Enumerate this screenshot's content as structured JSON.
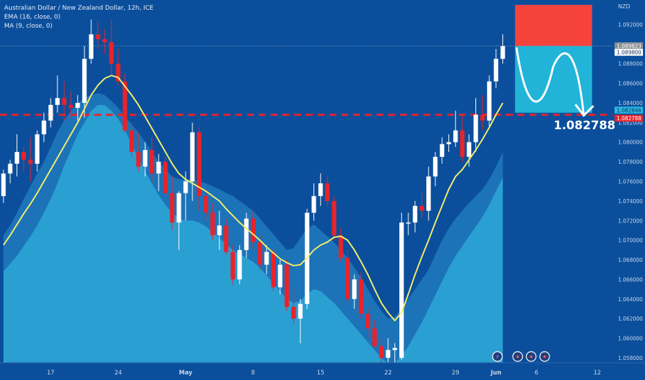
{
  "header": {
    "title": "Australian Dollar / New Zealand Dollar, 12h, ICE",
    "indicator_ema": "EMA (16, close, 0)",
    "indicator_ma": "MA (9, close, 0)"
  },
  "colors": {
    "background": "#0b4f9c",
    "area_outer": "#1d73b8",
    "area_inner": "#2a9fd2",
    "bull": "#ffffff",
    "bear": "#e8232b",
    "ema": "#f4ee6a",
    "target_zone": "#22b4d8",
    "stop_zone": "#f5433c",
    "support_line": "#e8232b"
  },
  "chart_data": {
    "type": "candlestick",
    "currency": "NZD",
    "ylim": [
      1.0575,
      1.0945
    ],
    "price_ticks": [
      "1.092000",
      "1.090000",
      "1.088000",
      "1.086000",
      "1.084000",
      "1.082000",
      "1.080000",
      "1.078000",
      "1.076000",
      "1.074000",
      "1.072000",
      "1.070000",
      "1.068000",
      "1.066000",
      "1.064000",
      "1.062000",
      "1.060000",
      "1.058000"
    ],
    "x_ticks": [
      {
        "label": "17",
        "index": 7
      },
      {
        "label": "24",
        "index": 17
      },
      {
        "label": "May",
        "index": 27
      },
      {
        "label": "8",
        "index": 37
      },
      {
        "label": "15",
        "index": 47
      },
      {
        "label": "22",
        "index": 57
      },
      {
        "label": "29",
        "index": 67
      },
      {
        "label": "Jun",
        "index": 73
      },
      {
        "label": "6",
        "index": 79
      },
      {
        "label": "12",
        "index": 88
      }
    ],
    "candles": [
      [
        1.0745,
        1.0772,
        1.0738,
        1.0768
      ],
      [
        1.0768,
        1.0782,
        1.0758,
        1.0778
      ],
      [
        1.0778,
        1.0808,
        1.0765,
        1.079
      ],
      [
        1.079,
        1.0795,
        1.077,
        1.0782
      ],
      [
        1.0782,
        1.0805,
        1.076,
        1.0778
      ],
      [
        1.0778,
        1.0812,
        1.077,
        1.0808
      ],
      [
        1.0808,
        1.083,
        1.08,
        1.0822
      ],
      [
        1.0822,
        1.0845,
        1.0815,
        1.0838
      ],
      [
        1.0838,
        1.0868,
        1.083,
        1.0845
      ],
      [
        1.0845,
        1.0862,
        1.0822,
        1.0838
      ],
      [
        1.0838,
        1.0852,
        1.0825,
        1.0835
      ],
      [
        1.0835,
        1.0848,
        1.0822,
        1.084
      ],
      [
        1.084,
        1.0898,
        1.0825,
        1.0885
      ],
      [
        1.0885,
        1.0925,
        1.088,
        1.091
      ],
      [
        1.091,
        1.0922,
        1.0895,
        1.0905
      ],
      [
        1.0905,
        1.0915,
        1.089,
        1.0902
      ],
      [
        1.0902,
        1.0925,
        1.087,
        1.088
      ],
      [
        1.088,
        1.0895,
        1.0858,
        1.0862
      ],
      [
        1.0862,
        1.087,
        1.081,
        1.0812
      ],
      [
        1.0812,
        1.082,
        1.0785,
        1.079
      ],
      [
        1.079,
        1.081,
        1.077,
        1.0775
      ],
      [
        1.0775,
        1.08,
        1.0765,
        1.0792
      ],
      [
        1.0792,
        1.0805,
        1.076,
        1.0768
      ],
      [
        1.0768,
        1.0788,
        1.075,
        1.078
      ],
      [
        1.078,
        1.0785,
        1.0745,
        1.0748
      ],
      [
        1.0748,
        1.0765,
        1.071,
        1.0718
      ],
      [
        1.0718,
        1.075,
        1.069,
        1.0748
      ],
      [
        1.0748,
        1.077,
        1.072,
        1.076
      ],
      [
        1.076,
        1.082,
        1.074,
        1.081
      ],
      [
        1.081,
        1.0815,
        1.073,
        1.0745
      ],
      [
        1.0745,
        1.0752,
        1.072,
        1.0728
      ],
      [
        1.0728,
        1.0738,
        1.07,
        1.0705
      ],
      [
        1.0705,
        1.073,
        1.069,
        1.0715
      ],
      [
        1.0715,
        1.0722,
        1.0685,
        1.0688
      ],
      [
        1.0688,
        1.0695,
        1.0655,
        1.066
      ],
      [
        1.066,
        1.0695,
        1.0655,
        1.069
      ],
      [
        1.069,
        1.0728,
        1.0682,
        1.0722
      ],
      [
        1.0722,
        1.073,
        1.069,
        1.0698
      ],
      [
        1.0698,
        1.0705,
        1.067,
        1.0675
      ],
      [
        1.0675,
        1.0695,
        1.0665,
        1.0688
      ],
      [
        1.0688,
        1.0692,
        1.0648,
        1.0652
      ],
      [
        1.0652,
        1.068,
        1.0645,
        1.0675
      ],
      [
        1.0675,
        1.068,
        1.0628,
        1.0632
      ],
      [
        1.0632,
        1.065,
        1.0615,
        1.062
      ],
      [
        1.062,
        1.064,
        1.0595,
        1.0635
      ],
      [
        1.0635,
        1.0732,
        1.063,
        1.0728
      ],
      [
        1.0728,
        1.0758,
        1.072,
        1.0745
      ],
      [
        1.0745,
        1.0768,
        1.0735,
        1.0758
      ],
      [
        1.0758,
        1.0765,
        1.0735,
        1.074
      ],
      [
        1.074,
        1.0745,
        1.07,
        1.0705
      ],
      [
        1.0705,
        1.0712,
        1.0678,
        1.0682
      ],
      [
        1.0682,
        1.069,
        1.0635,
        1.064
      ],
      [
        1.064,
        1.0665,
        1.063,
        1.066
      ],
      [
        1.066,
        1.0668,
        1.062,
        1.0625
      ],
      [
        1.0625,
        1.0632,
        1.06,
        1.061
      ],
      [
        1.061,
        1.0618,
        1.059,
        1.0592
      ],
      [
        1.0592,
        1.06,
        1.0572,
        1.058
      ],
      [
        1.058,
        1.06,
        1.057,
        1.0588
      ],
      [
        1.0588,
        1.0595,
        1.0572,
        1.059
      ],
      [
        1.058,
        1.0728,
        1.0578,
        1.0718
      ],
      [
        1.0718,
        1.0728,
        1.0705,
        1.0718
      ],
      [
        1.0718,
        1.074,
        1.0708,
        1.0735
      ],
      [
        1.0735,
        1.0748,
        1.0722,
        1.073
      ],
      [
        1.073,
        1.0775,
        1.072,
        1.0765
      ],
      [
        1.0765,
        1.079,
        1.0755,
        1.0785
      ],
      [
        1.0785,
        1.0805,
        1.0778,
        1.0798
      ],
      [
        1.0798,
        1.0808,
        1.079,
        1.08
      ],
      [
        1.08,
        1.0832,
        1.0795,
        1.0812
      ],
      [
        1.0812,
        1.0828,
        1.078,
        1.0785
      ],
      [
        1.0785,
        1.0808,
        1.0775,
        1.08
      ],
      [
        1.08,
        1.0845,
        1.079,
        1.0828
      ],
      [
        1.0828,
        1.0848,
        1.0812,
        1.0822
      ],
      [
        1.0822,
        1.0868,
        1.0815,
        1.0862
      ],
      [
        1.0862,
        1.0895,
        1.0855,
        1.0885
      ],
      [
        1.0885,
        1.091,
        1.088,
        1.0898
      ]
    ],
    "ema": [
      1.0695,
      1.0705,
      1.0716,
      1.0727,
      1.0737,
      1.0748,
      1.076,
      1.0772,
      1.0784,
      1.0796,
      1.0808,
      1.082,
      1.0834,
      1.0848,
      1.0858,
      1.0865,
      1.0868,
      1.0866,
      1.0857,
      1.0848,
      1.0838,
      1.0826,
      1.0814,
      1.0802,
      1.079,
      1.0778,
      1.0768,
      1.0762,
      1.0758,
      1.0754,
      1.075,
      1.0745,
      1.074,
      1.0732,
      1.0725,
      1.0718,
      1.0712,
      1.0706,
      1.07,
      1.0693,
      1.0687,
      1.0681,
      1.0677,
      1.0674,
      1.0675,
      1.0682,
      1.069,
      1.0695,
      1.0698,
      1.0703,
      1.0704,
      1.07,
      1.069,
      1.0678,
      1.0665,
      1.065,
      1.0636,
      1.0626,
      1.0618,
      1.0626,
      1.0645,
      1.0665,
      1.0683,
      1.07,
      1.0718,
      1.0735,
      1.0752,
      1.0765,
      1.0772,
      1.0782,
      1.0792,
      1.0803,
      1.0815,
      1.0828,
      1.084
    ],
    "ma_upper": [
      1.0705,
      1.0715,
      1.0728,
      1.0742,
      1.0755,
      1.0768,
      1.078,
      1.0795,
      1.081,
      1.0822,
      1.0832,
      1.084,
      1.0845,
      1.0848,
      1.085,
      1.0848,
      1.0842,
      1.0835,
      1.0826,
      1.0818,
      1.081,
      1.08,
      1.079,
      1.078,
      1.0772,
      1.0765,
      1.0762,
      1.0762,
      1.0762,
      1.076,
      1.0758,
      1.0755,
      1.0752,
      1.0748,
      1.0745,
      1.074,
      1.0735,
      1.073,
      1.0722,
      1.0714,
      1.0706,
      1.0698,
      1.069,
      1.0692,
      1.0702,
      1.0712,
      1.0716,
      1.071,
      1.0704,
      1.0698,
      1.069,
      1.0682,
      1.0672,
      1.0662,
      1.065,
      1.0638,
      1.0628,
      1.062,
      1.0622,
      1.063,
      1.064,
      1.065,
      1.066,
      1.067,
      1.0685,
      1.07,
      1.0712,
      1.0722,
      1.073,
      1.0738,
      1.0745,
      1.0752,
      1.0762,
      1.0775,
      1.079
    ],
    "ma_lower": [
      1.0668,
      1.0676,
      1.0684,
      1.0694,
      1.0704,
      1.0715,
      1.0728,
      1.0742,
      1.0758,
      1.0776,
      1.0792,
      1.0808,
      1.082,
      1.0832,
      1.0838,
      1.0838,
      1.0832,
      1.0824,
      1.0812,
      1.0798,
      1.0784,
      1.077,
      1.0758,
      1.0746,
      1.0736,
      1.0728,
      1.0722,
      1.072,
      1.072,
      1.0718,
      1.0714,
      1.0708,
      1.0702,
      1.0696,
      1.069,
      1.0686,
      1.0682,
      1.0678,
      1.0672,
      1.0664,
      1.0656,
      1.0648,
      1.064,
      1.0636,
      1.0638,
      1.0645,
      1.065,
      1.0648,
      1.0642,
      1.0636,
      1.0628,
      1.062,
      1.0612,
      1.0604,
      1.0596,
      1.0588,
      1.058,
      1.0574,
      1.0575,
      1.0582,
      1.0592,
      1.0604,
      1.0616,
      1.063,
      1.0644,
      1.0658,
      1.0672,
      1.0684,
      1.0694,
      1.0704,
      1.0714,
      1.0724,
      1.0736,
      1.075,
      1.0764
    ],
    "support_level": 1.082788,
    "support_label": "1.082788",
    "price_badges": [
      {
        "value": 1.089823,
        "label": "1.089823",
        "style": "gray"
      },
      {
        "value": 1.0898,
        "label": "1.089800",
        "style": "white"
      },
      {
        "value": 1.082846,
        "label": "1.082846",
        "style": "cyan"
      },
      {
        "value": 1.082788,
        "label": "1.082788",
        "style": "red"
      }
    ],
    "trade_box": {
      "start_index": 75,
      "end_index": 86,
      "entry": 1.0898,
      "stop": 1.094,
      "target": 1.083
    },
    "event_icons": [
      {
        "index": 73,
        "symbol": "⚡"
      },
      {
        "index": 76,
        "symbol": "✦"
      },
      {
        "index": 78,
        "symbol": "✦"
      },
      {
        "index": 80,
        "symbol": "✦"
      }
    ]
  }
}
